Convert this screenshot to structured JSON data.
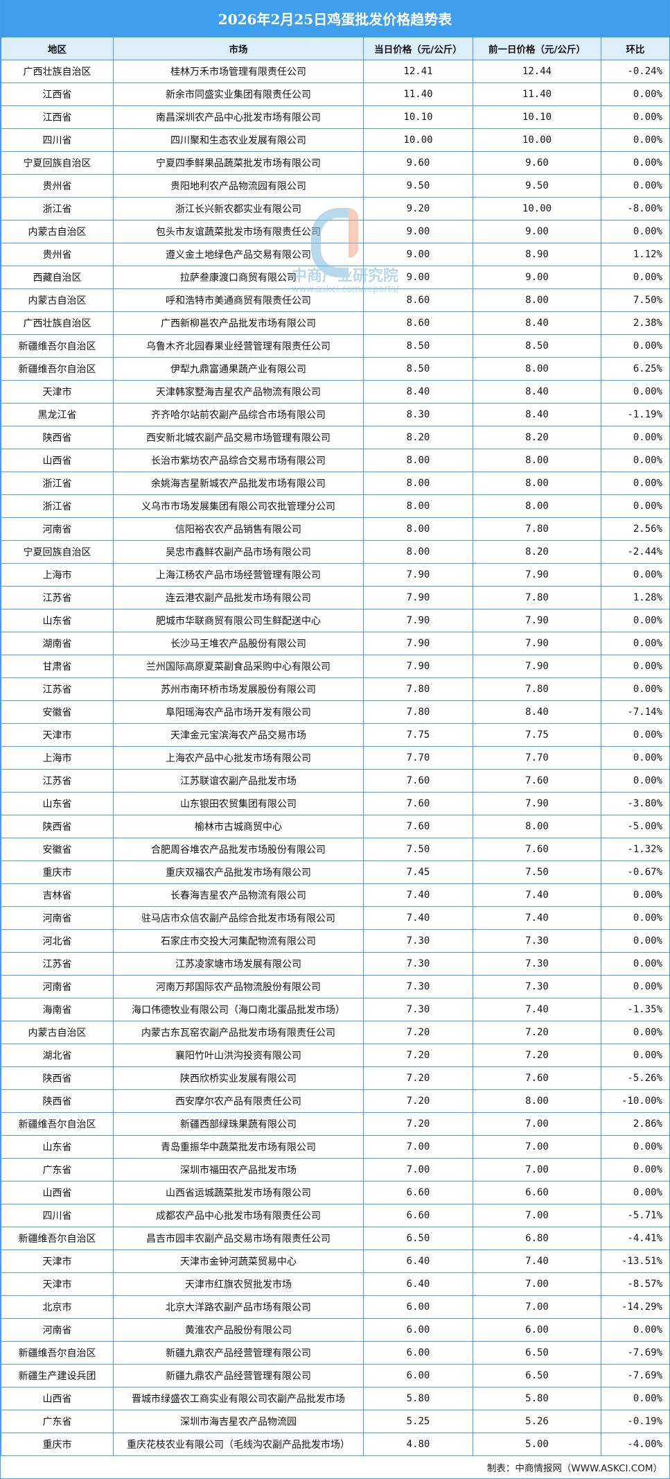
{
  "title": "2026年2月25日鸡蛋批发价格趋势表",
  "columns": [
    "地区",
    "市场",
    "当日价格（元/公斤）",
    "前一日价格（元/公斤）",
    "环比"
  ],
  "rows": [
    [
      "广西壮族自治区",
      "桂林万禾市场管理有限责任公司",
      "12.41",
      "12.44",
      "-0.24%"
    ],
    [
      "江西省",
      "新余市同盛实业集团有限责任公司",
      "11.40",
      "11.40",
      "0.00%"
    ],
    [
      "江西省",
      "南昌深圳农产品中心批发市场有限公司",
      "10.10",
      "10.10",
      "0.00%"
    ],
    [
      "四川省",
      "四川聚和生态农业发展有限公司",
      "10.00",
      "10.00",
      "0.00%"
    ],
    [
      "宁夏回族自治区",
      "宁夏四季鲜果品蔬菜批发市场有限公司",
      "9.60",
      "9.60",
      "0.00%"
    ],
    [
      "贵州省",
      "贵阳地利农产品物流园有限公司",
      "9.50",
      "9.50",
      "0.00%"
    ],
    [
      "浙江省",
      "浙江长兴新农都实业有限公司",
      "9.20",
      "10.00",
      "-8.00%"
    ],
    [
      "内蒙古自治区",
      "包头市友谊蔬菜批发市场有限责任公司",
      "9.00",
      "9.00",
      "0.00%"
    ],
    [
      "贵州省",
      "遵义金土地绿色产品交易有限公司",
      "9.00",
      "8.90",
      "1.12%"
    ],
    [
      "西藏自治区",
      "拉萨叁康渡口商贸有限公司",
      "9.00",
      "9.00",
      "0.00%"
    ],
    [
      "内蒙古自治区",
      "呼和浩特市美通商贸有限责任公司",
      "8.60",
      "8.00",
      "7.50%"
    ],
    [
      "广西壮族自治区",
      "广西新柳邕农产品批发市场有限公司",
      "8.60",
      "8.40",
      "2.38%"
    ],
    [
      "新疆维吾尔自治区",
      "乌鲁木齐北园春果业经营管理有限责任公司",
      "8.50",
      "8.50",
      "0.00%"
    ],
    [
      "新疆维吾尔自治区",
      "伊犁九鼎富通果蔬产业有限公司",
      "8.50",
      "8.00",
      "6.25%"
    ],
    [
      "天津市",
      "天津韩家墅海吉星农产品物流有限公司",
      "8.40",
      "8.40",
      "0.00%"
    ],
    [
      "黑龙江省",
      "齐齐哈尔站前农副产品综合市场有限公司",
      "8.30",
      "8.40",
      "-1.19%"
    ],
    [
      "陕西省",
      "西安新北城农副产品交易市场管理有限公司",
      "8.20",
      "8.20",
      "0.00%"
    ],
    [
      "山西省",
      "长治市紫坊农产品综合交易市场有限公司",
      "8.00",
      "8.00",
      "0.00%"
    ],
    [
      "浙江省",
      "余姚海吉星新城农产品批发市场有限公司",
      "8.00",
      "8.00",
      "0.00%"
    ],
    [
      "浙江省",
      "义乌市市场发展集团有限公司农批管理分公司",
      "8.00",
      "8.00",
      "0.00%"
    ],
    [
      "河南省",
      "信阳裕农农产品销售有限公司",
      "8.00",
      "7.80",
      "2.56%"
    ],
    [
      "宁夏回族自治区",
      "吴忠市鑫鲜农副产品市场有限公司",
      "8.00",
      "8.20",
      "-2.44%"
    ],
    [
      "上海市",
      "上海江杨农产品市场经营管理有限公司",
      "7.90",
      "7.90",
      "0.00%"
    ],
    [
      "江苏省",
      "连云港农副产品批发市场有限公司",
      "7.90",
      "7.80",
      "1.28%"
    ],
    [
      "山东省",
      "肥城市华联商贸有限公司生鲜配送中心",
      "7.90",
      "7.90",
      "0.00%"
    ],
    [
      "湖南省",
      "长沙马王堆农产品股份有限公司",
      "7.90",
      "7.90",
      "0.00%"
    ],
    [
      "甘肃省",
      "兰州国际高原夏菜副食品采购中心有限公司",
      "7.90",
      "7.90",
      "0.00%"
    ],
    [
      "江苏省",
      "苏州市南环桥市场发展股份有限公司",
      "7.80",
      "7.80",
      "0.00%"
    ],
    [
      "安徽省",
      "阜阳瑶海农产品市场开发有限公司",
      "7.80",
      "8.40",
      "-7.14%"
    ],
    [
      "天津市",
      "天津金元宝滨海农产品交易市场",
      "7.75",
      "7.75",
      "0.00%"
    ],
    [
      "上海市",
      "上海农产品中心批发市场有限公司",
      "7.70",
      "7.70",
      "0.00%"
    ],
    [
      "江苏省",
      "江苏联谊农副产品批发市场",
      "7.60",
      "7.60",
      "0.00%"
    ],
    [
      "山东省",
      "山东银田农贸集团有限公司",
      "7.60",
      "7.90",
      "-3.80%"
    ],
    [
      "陕西省",
      "榆林市古城商贸中心",
      "7.60",
      "8.00",
      "-5.00%"
    ],
    [
      "安徽省",
      "合肥周谷堆农产品批发市场股份有限公司",
      "7.50",
      "7.60",
      "-1.32%"
    ],
    [
      "重庆市",
      "重庆双福农产品批发市场有限公司",
      "7.45",
      "7.50",
      "-0.67%"
    ],
    [
      "吉林省",
      "长春海吉星农产品物流有限公司",
      "7.40",
      "7.40",
      "0.00%"
    ],
    [
      "河南省",
      "驻马店市众信农副产品综合批发市场有限公司",
      "7.40",
      "7.40",
      "0.00%"
    ],
    [
      "河北省",
      "石家庄市交投大河集配物流有限公司",
      "7.30",
      "7.30",
      "0.00%"
    ],
    [
      "江苏省",
      "江苏凌家塘市场发展有限公司",
      "7.30",
      "7.30",
      "0.00%"
    ],
    [
      "河南省",
      "河南万邦国际农产品物流股份有限公司",
      "7.30",
      "7.30",
      "0.00%"
    ],
    [
      "海南省",
      "海口伟德牧业有限公司（海口南北蛋品批发市场）",
      "7.30",
      "7.40",
      "-1.35%"
    ],
    [
      "内蒙古自治区",
      "内蒙古东瓦窑农副产品批发市场有限责任公司",
      "7.20",
      "7.20",
      "0.00%"
    ],
    [
      "湖北省",
      "襄阳竹叶山洪沟投资有限公司",
      "7.20",
      "7.20",
      "0.00%"
    ],
    [
      "陕西省",
      "陕西欣桥实业发展有限公司",
      "7.20",
      "7.60",
      "-5.26%"
    ],
    [
      "陕西省",
      "西安摩尔农产品有限责任公司",
      "7.20",
      "8.00",
      "-10.00%"
    ],
    [
      "新疆维吾尔自治区",
      "新疆西部绿珠果蔬有限公司",
      "7.20",
      "7.00",
      "2.86%"
    ],
    [
      "山东省",
      "青岛重振华中蔬菜批发市场有限公司",
      "7.00",
      "7.00",
      "0.00%"
    ],
    [
      "广东省",
      "深圳市福田农产品批发市场",
      "7.00",
      "7.00",
      "0.00%"
    ],
    [
      "山西省",
      "山西省运城蔬菜批发市场有限公司",
      "6.60",
      "6.60",
      "0.00%"
    ],
    [
      "四川省",
      "成都农产品中心批发市场有限责任公司",
      "6.60",
      "7.00",
      "-5.71%"
    ],
    [
      "新疆维吾尔自治区",
      "昌吉市园丰农副产品交易市场有限责任公司",
      "6.50",
      "6.80",
      "-4.41%"
    ],
    [
      "天津市",
      "天津市金钟河蔬菜贸易中心",
      "6.40",
      "7.40",
      "-13.51%"
    ],
    [
      "天津市",
      "天津市红旗农贸批发市场",
      "6.40",
      "7.00",
      "-8.57%"
    ],
    [
      "北京市",
      "北京大洋路农副产品市场有限公司",
      "6.00",
      "7.00",
      "-14.29%"
    ],
    [
      "河南省",
      "黄淮农产品股份有限公司",
      "6.00",
      "6.00",
      "0.00%"
    ],
    [
      "新疆维吾尔自治区",
      "新疆九鼎农产品经营管理有限公司",
      "6.00",
      "6.50",
      "-7.69%"
    ],
    [
      "新疆生产建设兵团",
      "新疆九鼎农产品经营管理有限公司",
      "6.00",
      "6.50",
      "-7.69%"
    ],
    [
      "山西省",
      "晋城市绿盛农工商实业有限公司农副产品批发市场",
      "5.80",
      "5.80",
      "0.00%"
    ],
    [
      "广东省",
      "深圳市海吉星农产品物流园",
      "5.25",
      "5.26",
      "-0.19%"
    ],
    [
      "重庆市",
      "重庆花枝农业有限公司（毛线沟农副产品批发市场）",
      "4.80",
      "5.00",
      "-4.00%"
    ]
  ],
  "watermark": {
    "name": "中商产业研究院",
    "url": "www.askci.com/reports/"
  },
  "footer": "制表：中商情报网（WWW.ASKCI.COM）",
  "colors": {
    "title_bg": "#3f9fef",
    "header_bg": "#dcedfc",
    "border": "#4a9de8"
  }
}
